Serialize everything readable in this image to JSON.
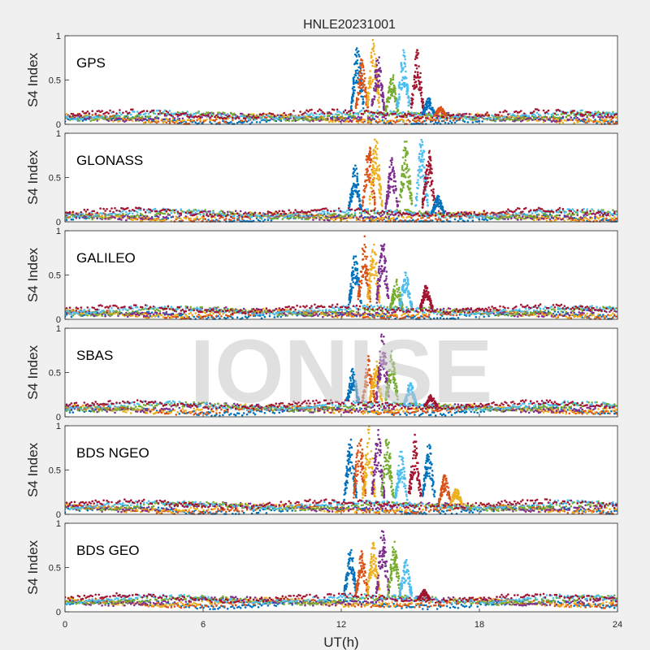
{
  "title": "HNLE20231001",
  "watermark": "IONISE",
  "chart_data": {
    "type": "scatter",
    "title": "HNLE20231001",
    "xlabel": "UT(h)",
    "xlim": [
      0,
      24
    ],
    "xticks": [
      "0",
      "6",
      "12",
      "18",
      "24"
    ],
    "ylabel": "S4 Index",
    "ylim": [
      0,
      1
    ],
    "yticks": [
      "0",
      "0.5",
      "1"
    ],
    "grid": false,
    "series_colors": [
      "#0072BD",
      "#D95319",
      "#EDB120",
      "#7E2F8E",
      "#77AC30",
      "#4DBEEE",
      "#A2142F"
    ],
    "panels": [
      {
        "label": "GPS",
        "baseline": 0.08,
        "active_window": [
          12.0,
          16.8
        ],
        "peaks": [
          {
            "x": 12.7,
            "y": 0.95
          },
          {
            "x": 12.9,
            "y": 0.75
          },
          {
            "x": 13.4,
            "y": 1.0
          },
          {
            "x": 13.6,
            "y": 0.8
          },
          {
            "x": 14.2,
            "y": 0.6
          },
          {
            "x": 14.7,
            "y": 0.85
          },
          {
            "x": 15.3,
            "y": 0.85
          },
          {
            "x": 15.8,
            "y": 0.3
          },
          {
            "x": 16.3,
            "y": 0.2
          }
        ]
      },
      {
        "label": "GLONASS",
        "baseline": 0.07,
        "active_window": [
          12.0,
          16.5
        ],
        "peaks": [
          {
            "x": 12.6,
            "y": 0.65
          },
          {
            "x": 13.2,
            "y": 0.9
          },
          {
            "x": 13.5,
            "y": 1.0
          },
          {
            "x": 14.2,
            "y": 0.75
          },
          {
            "x": 14.8,
            "y": 0.95
          },
          {
            "x": 15.5,
            "y": 1.0
          },
          {
            "x": 15.8,
            "y": 0.85
          },
          {
            "x": 16.2,
            "y": 0.3
          }
        ]
      },
      {
        "label": "GALILEO",
        "baseline": 0.08,
        "active_window": [
          12.0,
          16.3
        ],
        "peaks": [
          {
            "x": 12.6,
            "y": 0.75
          },
          {
            "x": 13.0,
            "y": 0.95
          },
          {
            "x": 13.4,
            "y": 0.9
          },
          {
            "x": 13.8,
            "y": 0.95
          },
          {
            "x": 14.4,
            "y": 0.45
          },
          {
            "x": 14.8,
            "y": 0.55
          },
          {
            "x": 15.7,
            "y": 0.4
          }
        ]
      },
      {
        "label": "SBAS",
        "baseline": 0.1,
        "active_window": [
          12.0,
          16.5
        ],
        "peaks": [
          {
            "x": 12.5,
            "y": 0.55
          },
          {
            "x": 13.2,
            "y": 0.7
          },
          {
            "x": 13.5,
            "y": 0.65
          },
          {
            "x": 13.8,
            "y": 1.0
          },
          {
            "x": 14.2,
            "y": 0.75
          },
          {
            "x": 15.0,
            "y": 0.4
          },
          {
            "x": 15.9,
            "y": 0.25
          }
        ]
      },
      {
        "label": "BDS NGEO",
        "baseline": 0.08,
        "active_window": [
          12.0,
          17.5
        ],
        "peaks": [
          {
            "x": 12.4,
            "y": 0.9
          },
          {
            "x": 12.8,
            "y": 0.95
          },
          {
            "x": 13.2,
            "y": 1.0
          },
          {
            "x": 13.6,
            "y": 1.0
          },
          {
            "x": 14.0,
            "y": 0.9
          },
          {
            "x": 14.6,
            "y": 0.75
          },
          {
            "x": 15.2,
            "y": 0.9
          },
          {
            "x": 15.8,
            "y": 0.85
          },
          {
            "x": 16.5,
            "y": 0.45
          },
          {
            "x": 17.0,
            "y": 0.3
          }
        ]
      },
      {
        "label": "BDS GEO",
        "baseline": 0.12,
        "active_window": [
          12.0,
          16.5
        ],
        "peaks": [
          {
            "x": 12.4,
            "y": 0.75
          },
          {
            "x": 12.9,
            "y": 0.7
          },
          {
            "x": 13.4,
            "y": 0.8
          },
          {
            "x": 13.8,
            "y": 0.95
          },
          {
            "x": 14.3,
            "y": 0.8
          },
          {
            "x": 14.8,
            "y": 0.6
          },
          {
            "x": 15.6,
            "y": 0.25
          }
        ]
      }
    ]
  }
}
